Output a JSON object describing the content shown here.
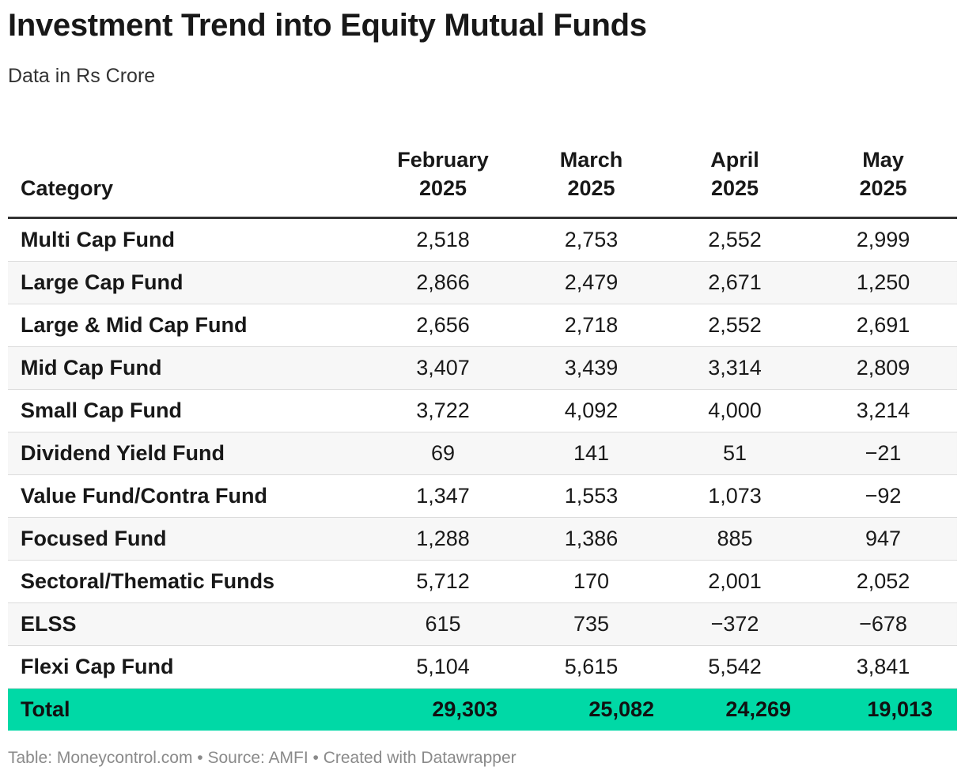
{
  "title": "Investment Trend into Equity Mutual Funds",
  "subtitle": "Data in Rs Crore",
  "columns": [
    {
      "label": "Category"
    },
    {
      "line1": "February",
      "line2": "2025"
    },
    {
      "line1": "March",
      "line2": "2025"
    },
    {
      "line1": "April",
      "line2": "2025"
    },
    {
      "line1": "May",
      "line2": "2025"
    }
  ],
  "rows": [
    [
      "Multi Cap Fund",
      "2,518",
      "2,753",
      "2,552",
      "2,999"
    ],
    [
      "Large Cap Fund",
      "2,866",
      "2,479",
      "2,671",
      "1,250"
    ],
    [
      "Large & Mid Cap Fund",
      "2,656",
      "2,718",
      "2,552",
      "2,691"
    ],
    [
      "Mid Cap Fund",
      "3,407",
      "3,439",
      "3,314",
      "2,809"
    ],
    [
      "Small Cap Fund",
      "3,722",
      "4,092",
      "4,000",
      "3,214"
    ],
    [
      "Dividend Yield Fund",
      "69",
      "141",
      "51",
      "−21"
    ],
    [
      "Value Fund/Contra Fund",
      "1,347",
      "1,553",
      "1,073",
      "−92"
    ],
    [
      "Focused Fund",
      "1,288",
      "1,386",
      "885",
      "947"
    ],
    [
      "Sectoral/Thematic Funds",
      "5,712",
      "170",
      "2,001",
      "2,052"
    ],
    [
      "ELSS",
      "615",
      "735",
      "−372",
      "−678"
    ],
    [
      "Flexi Cap Fund",
      "5,104",
      "5,615",
      "5,542",
      "3,841"
    ]
  ],
  "total": [
    "Total",
    "29,303",
    "25,082",
    "24,269",
    "19,013"
  ],
  "footer": "Table: Moneycontrol.com • Source: AMFI • Created with Datawrapper",
  "colors": {
    "total_row_bg": "#00d9a6",
    "header_rule": "#333333",
    "row_divider": "#dcdcdc",
    "zebra_row": "#f7f7f7"
  },
  "chart_data": {
    "type": "table",
    "title": "Investment Trend into Equity Mutual Funds",
    "subtitle": "Data in Rs Crore",
    "columns": [
      "Category",
      "February 2025",
      "March 2025",
      "April 2025",
      "May 2025"
    ],
    "categories": [
      "Multi Cap Fund",
      "Large Cap Fund",
      "Large & Mid Cap Fund",
      "Mid Cap Fund",
      "Small Cap Fund",
      "Dividend Yield Fund",
      "Value Fund/Contra Fund",
      "Focused Fund",
      "Sectoral/Thematic Funds",
      "ELSS",
      "Flexi Cap Fund"
    ],
    "series": [
      {
        "name": "February 2025",
        "values": [
          2518,
          2866,
          2656,
          3407,
          3722,
          69,
          1347,
          1288,
          5712,
          615,
          5104
        ]
      },
      {
        "name": "March 2025",
        "values": [
          2753,
          2479,
          2718,
          3439,
          4092,
          141,
          1553,
          1386,
          170,
          735,
          5615
        ]
      },
      {
        "name": "April 2025",
        "values": [
          2552,
          2671,
          2552,
          3314,
          4000,
          51,
          1073,
          885,
          2001,
          -372,
          5542
        ]
      },
      {
        "name": "May 2025",
        "values": [
          2999,
          1250,
          2691,
          2809,
          3214,
          -21,
          -92,
          947,
          2052,
          -678,
          3841
        ]
      }
    ],
    "totals": {
      "February 2025": 29303,
      "March 2025": 25082,
      "April 2025": 24269,
      "May 2025": 19013
    }
  }
}
